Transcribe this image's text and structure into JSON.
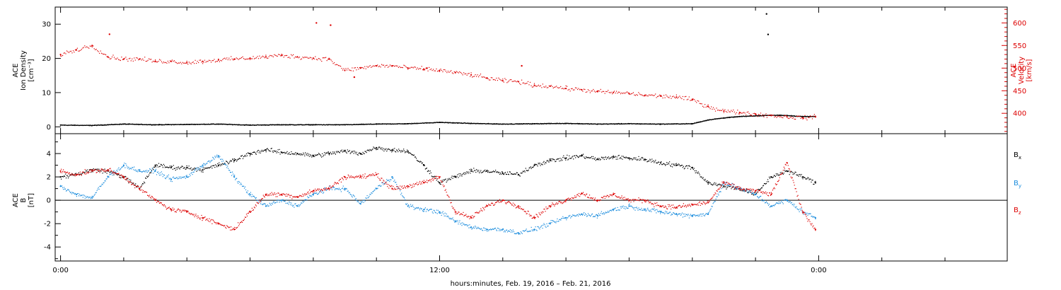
{
  "xaxis": {
    "title": "hours:minutes, Feb. 19, 2016 – Feb. 21, 2016",
    "range_hours": [
      -0.17,
      29.97
    ],
    "major_ticks": [
      {
        "hour": 0,
        "label": "0:00"
      },
      {
        "hour": 12,
        "label": "12:00"
      },
      {
        "hour": 24,
        "label": "0:00"
      }
    ],
    "minor_step_hours": 2
  },
  "chart_data": [
    {
      "type": "scatter",
      "panel": "top",
      "ylabel_lines": [
        "ACE",
        "Ion Density",
        "[cm⁻³]"
      ],
      "ylim": [
        -2,
        35
      ],
      "yticks": [
        0,
        10,
        20,
        30
      ],
      "y2label_lines": [
        "ACE",
        "Velocity",
        "[km/s]"
      ],
      "y2lim": [
        355,
        635
      ],
      "y2ticks": [
        400,
        450,
        500,
        550,
        600
      ],
      "y2_color": "#dd0000",
      "series": [
        {
          "name": "",
          "axis": "left",
          "color": "#000000",
          "x": [
            0,
            1,
            2,
            3,
            4,
            5,
            6,
            7,
            8,
            9,
            10,
            11,
            12,
            13,
            14,
            15,
            16,
            17,
            18,
            19,
            20,
            20.5,
            21,
            21.5,
            22,
            22.5,
            23,
            23.5,
            23.9
          ],
          "y": [
            0.5,
            0.4,
            0.8,
            0.6,
            0.7,
            0.8,
            0.5,
            0.6,
            0.6,
            0.6,
            0.8,
            0.9,
            1.3,
            1.0,
            0.8,
            0.9,
            1.0,
            0.8,
            0.9,
            0.8,
            0.9,
            2.0,
            2.6,
            3.0,
            3.2,
            3.4,
            3.3,
            3.0,
            3.0
          ]
        },
        {
          "name": "",
          "axis": "left",
          "color": "#000000",
          "x": [
            22.35,
            22.4
          ],
          "y": [
            33,
            27
          ]
        },
        {
          "name": "",
          "axis": "right",
          "color": "#dd0000",
          "x": [
            0,
            0.5,
            1,
            1.5,
            2,
            2.5,
            3,
            3.5,
            4,
            4.5,
            5,
            5.5,
            6,
            6.5,
            7,
            7.5,
            8,
            8.5,
            9,
            9.5,
            10,
            10.5,
            11,
            11.5,
            12,
            12.5,
            13,
            13.5,
            14,
            14.5,
            15,
            15.5,
            16,
            16.5,
            17,
            17.5,
            18,
            18.5,
            19,
            19.5,
            20,
            20.5,
            21,
            21.5,
            22,
            22.5,
            23,
            23.5,
            23.9
          ],
          "y": [
            530,
            540,
            550,
            525,
            520,
            520,
            515,
            515,
            512,
            515,
            518,
            520,
            522,
            525,
            528,
            525,
            522,
            520,
            495,
            500,
            505,
            505,
            500,
            498,
            495,
            490,
            485,
            478,
            472,
            470,
            462,
            460,
            455,
            452,
            448,
            446,
            444,
            440,
            438,
            436,
            430,
            415,
            405,
            402,
            398,
            395,
            392,
            390,
            392
          ]
        },
        {
          "name": "",
          "axis": "right",
          "color": "#dd0000",
          "x": [
            8.1,
            8.55,
            9.3,
            11.6,
            14.6,
            1.55
          ],
          "y": [
            600,
            595,
            480,
            500,
            505,
            575
          ]
        }
      ]
    },
    {
      "type": "scatter",
      "panel": "bottom",
      "ylabel_lines": [
        "ACE",
        "B",
        "[nT]"
      ],
      "ylim": [
        -5.2,
        5.7
      ],
      "yticks": [
        -4,
        -2,
        0,
        2,
        4
      ],
      "legend": [
        "Bx",
        "By",
        "Bz"
      ],
      "legend_placement": "right",
      "series": [
        {
          "name": "Bx",
          "color": "#000000",
          "x": [
            0,
            0.5,
            1,
            1.5,
            2,
            2.5,
            3,
            3.5,
            4,
            4.5,
            5,
            5.5,
            6,
            6.5,
            7,
            7.5,
            8,
            8.5,
            9,
            9.5,
            10,
            10.5,
            11,
            11.5,
            12,
            12.5,
            13,
            13.5,
            14,
            14.5,
            15,
            15.5,
            16,
            16.5,
            17,
            17.5,
            18,
            18.5,
            19,
            19.5,
            20,
            20.5,
            21,
            21.5,
            22,
            22.5,
            23,
            23.5,
            23.9
          ],
          "y": [
            2.0,
            2.2,
            2.6,
            2.5,
            2.0,
            1.0,
            3.0,
            2.8,
            2.8,
            2.6,
            3.0,
            3.4,
            4.0,
            4.3,
            4.1,
            4.0,
            3.8,
            4.0,
            4.2,
            4.0,
            4.5,
            4.3,
            4.2,
            3.0,
            1.5,
            2.0,
            2.5,
            2.5,
            2.3,
            2.2,
            3.0,
            3.4,
            3.6,
            3.8,
            3.5,
            3.7,
            3.6,
            3.5,
            3.2,
            3.0,
            2.8,
            1.5,
            1.2,
            1.0,
            0.5,
            2.0,
            2.5,
            2.0,
            1.5
          ]
        },
        {
          "name": "By",
          "color": "#1a8cdd",
          "x": [
            0,
            0.5,
            1,
            1.5,
            2,
            2.5,
            3,
            3.5,
            4,
            4.5,
            5,
            5.5,
            6,
            6.5,
            7,
            7.5,
            8,
            8.5,
            9,
            9.5,
            10,
            10.5,
            11,
            11.5,
            12,
            12.5,
            13,
            13.5,
            14,
            14.5,
            15,
            15.5,
            16,
            16.5,
            17,
            17.5,
            18,
            18.5,
            19,
            19.5,
            20,
            20.5,
            21,
            21.5,
            22,
            22.5,
            23,
            23.5,
            23.9
          ],
          "y": [
            1.2,
            0.5,
            0.2,
            2.0,
            3.0,
            2.5,
            2.5,
            1.8,
            2.0,
            3.0,
            3.8,
            2.0,
            0.5,
            -0.5,
            0.0,
            -0.5,
            0.5,
            1.0,
            1.0,
            -0.3,
            1.0,
            2.0,
            -0.5,
            -0.8,
            -1.0,
            -1.8,
            -2.3,
            -2.5,
            -2.5,
            -2.8,
            -2.5,
            -2.0,
            -1.5,
            -1.2,
            -1.3,
            -0.8,
            -0.5,
            -0.8,
            -1.0,
            -1.2,
            -1.3,
            -1.2,
            1.5,
            1.0,
            0.5,
            -0.5,
            0.0,
            -1.0,
            -1.5
          ]
        },
        {
          "name": "Bz",
          "color": "#dd0000",
          "x": [
            0,
            0.5,
            1,
            1.5,
            2,
            2.5,
            3,
            3.5,
            4,
            4.5,
            5,
            5.5,
            6,
            6.5,
            7,
            7.5,
            8,
            8.5,
            9,
            9.5,
            10,
            10.5,
            11,
            11.5,
            12,
            12.5,
            13,
            13.5,
            14,
            14.5,
            15,
            15.5,
            16,
            16.5,
            17,
            17.5,
            18,
            18.5,
            19,
            19.5,
            20,
            20.5,
            21,
            21.5,
            22,
            22.5,
            23,
            23.5,
            23.9
          ],
          "y": [
            2.5,
            2.2,
            2.5,
            2.6,
            2.0,
            1.0,
            0.0,
            -0.8,
            -1.0,
            -1.5,
            -2.0,
            -2.5,
            -1.0,
            0.5,
            0.5,
            0.3,
            0.8,
            1.0,
            2.0,
            2.0,
            2.2,
            1.0,
            1.2,
            1.5,
            2.0,
            -1.0,
            -1.5,
            -0.5,
            0.0,
            -0.5,
            -1.5,
            -0.5,
            0.0,
            0.6,
            0.0,
            0.5,
            0.0,
            0.0,
            -0.5,
            -0.6,
            -0.4,
            -0.2,
            1.5,
            1.0,
            0.8,
            0.5,
            3.2,
            -1.0,
            -2.5
          ]
        }
      ]
    }
  ]
}
